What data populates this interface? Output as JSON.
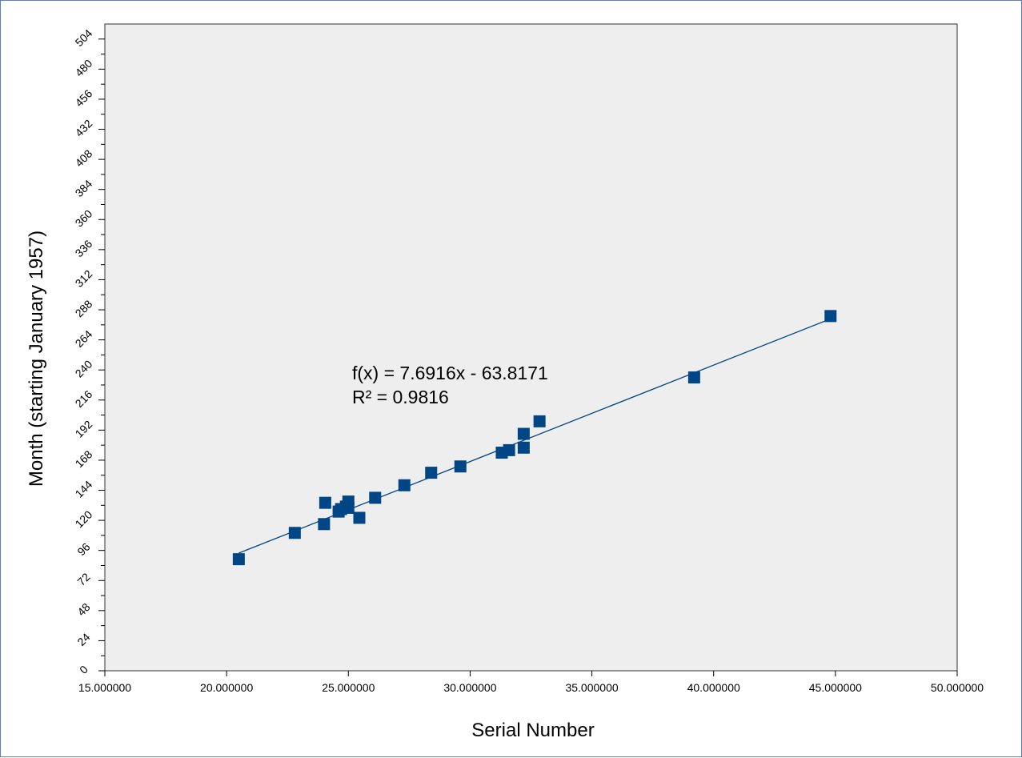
{
  "chart_data": {
    "type": "scatter",
    "title": "",
    "xlabel": "Serial Number",
    "ylabel": "Month (starting January 1957)",
    "xlim": [
      15.0,
      50.0
    ],
    "ylim": [
      0,
      516
    ],
    "x_ticks": [
      15,
      20,
      25,
      30,
      35,
      40,
      45,
      50
    ],
    "x_tick_labels": [
      "15.000000",
      "20.000000",
      "25.000000",
      "30.000000",
      "35.000000",
      "40.000000",
      "45.000000",
      "50.000000"
    ],
    "y_ticks": [
      0,
      24,
      48,
      72,
      96,
      120,
      144,
      168,
      192,
      216,
      240,
      264,
      288,
      312,
      336,
      360,
      384,
      408,
      432,
      456,
      480,
      504
    ],
    "y_tick_labels": [
      "0",
      "24",
      "48",
      "72",
      "96",
      "120",
      "144",
      "168",
      "192",
      "216",
      "240",
      "264",
      "288",
      "312",
      "336",
      "360",
      "384",
      "408",
      "432",
      "456",
      "480",
      "504"
    ],
    "y_minor_step": 12,
    "grid": false,
    "legend": "none",
    "background": "#eeeeee",
    "marker_color": "#004586",
    "marker": "square",
    "series": [
      {
        "x": [
          20.5,
          22.8,
          24.0,
          24.05,
          24.6,
          24.7,
          24.9,
          25.0,
          25.0,
          25.45,
          26.1,
          27.3,
          28.4,
          29.6,
          31.3,
          31.6,
          32.2,
          32.2,
          32.85,
          39.2,
          44.8
        ],
        "y": [
          89,
          110,
          117,
          134,
          127,
          129,
          131,
          130,
          135,
          122,
          138,
          148,
          158,
          163,
          174,
          176,
          178,
          189,
          199,
          234,
          283
        ]
      }
    ],
    "trendline": {
      "slope": 7.6916,
      "intercept": -63.8171,
      "x_range": [
        20.5,
        44.8
      ],
      "equation_label": "f(x) = 7.6916x - 63.8171",
      "r2_label": "R² = 0.9816"
    }
  }
}
